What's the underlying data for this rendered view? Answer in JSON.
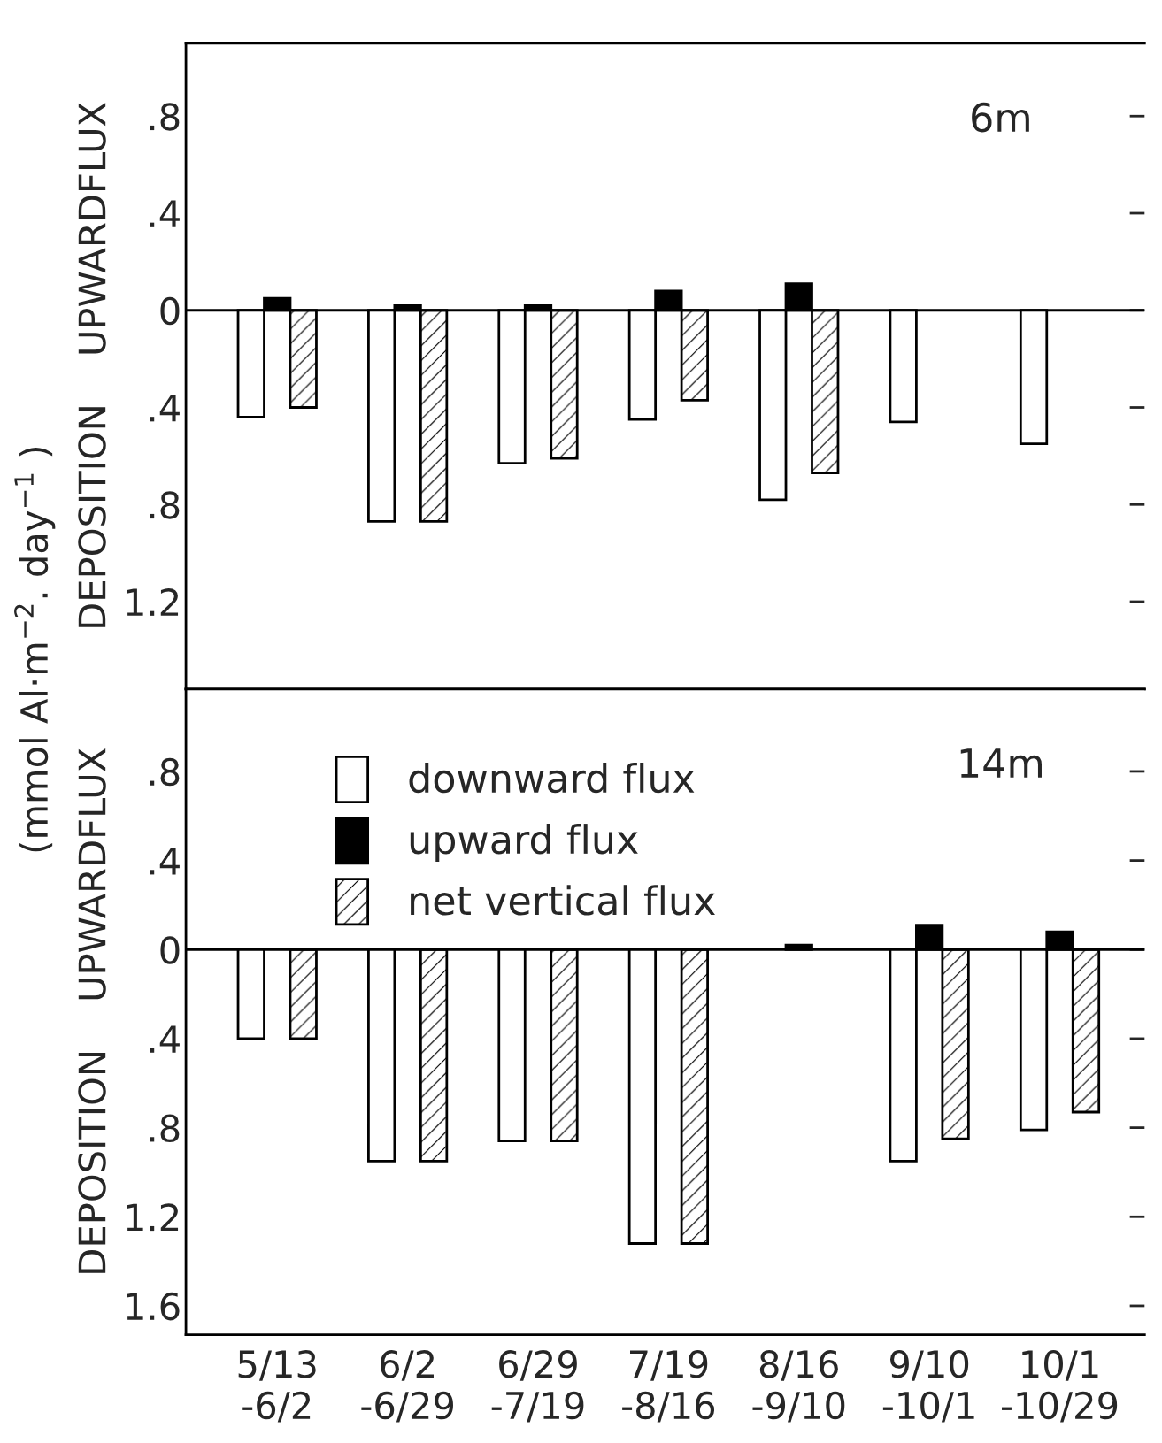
{
  "chart_data": [
    {
      "type": "bar",
      "title": "6m",
      "ylabel": "DEPOSITION    UPWARDFLUX",
      "annotations": [
        "(mmol Al·m$^{−2}$. day$^{−1}$ )"
      ],
      "tick_labels": "y",
      "grid": false,
      "categories": [
        null,
        null,
        null,
        null,
        null,
        null,
        null
      ],
      "series": [
        {
          "color": "#ffffff",
          "values": [
            -0.44,
            -0.87,
            -0.63,
            -0.45,
            -0.78,
            -0.46,
            -0.55
          ]
        },
        {
          "color": "#000000",
          "values": [
            0.05,
            0.02,
            0.02,
            0.08,
            0.11,
            null,
            null
          ]
        },
        {
          "color": "#000000",
          "values": [
            -0.4,
            -0.87,
            -0.61,
            -0.37,
            -0.67,
            null,
            null
          ]
        }
      ],
      "ylim": [
        -1.56,
        1.1
      ],
      "yticks": [
        {
          "value": -1.2,
          "label": "1.2"
        },
        {
          "value": -0.8,
          "label": ".8"
        },
        {
          "value": -0.4,
          "label": ".4"
        },
        0,
        {
          "value": 0.4,
          "label": ".4"
        },
        {
          "value": 0.8,
          "label": ".8"
        }
      ],
      "ref_lines": [
        {
          "axis": "y",
          "value": 0
        }
      ]
    },
    {
      "type": "bar",
      "title": "14m",
      "ylabel": "DEPOSITION    UPWARDFLUX",
      "legend": "top left",
      "grid": false,
      "categories": [
        "5/13\n-6/2",
        "6/2\n-6/29",
        "6/29\n-7/19",
        "7/19\n-8/16",
        "8/16\n-9/10",
        "9/10\n-10/1",
        "10/1\n-10/29"
      ],
      "series": [
        {
          "name": "downward flux",
          "color": "#ffffff",
          "values": [
            -0.4,
            -0.95,
            -0.86,
            -1.32,
            null,
            -0.95,
            -0.81
          ]
        },
        {
          "name": "upward flux",
          "color": "#000000",
          "values": [
            null,
            null,
            null,
            null,
            0.02,
            0.11,
            0.08
          ]
        },
        {
          "name": "net vertical flux",
          "color": "#000000",
          "values": [
            -0.4,
            -0.95,
            -0.86,
            -1.32,
            null,
            -0.85,
            -0.73
          ]
        }
      ],
      "ylim": [
        -1.73,
        1.17
      ],
      "yticks": [
        {
          "value": -1.6,
          "label": "1.6"
        },
        {
          "value": -1.2,
          "label": "1.2"
        },
        {
          "value": -0.8,
          "label": ".8"
        },
        {
          "value": -0.4,
          "label": ".4"
        },
        0,
        {
          "value": 0.4,
          "label": ".4"
        },
        {
          "value": 0.8,
          "label": ".8"
        }
      ],
      "ref_lines": [
        {
          "axis": "y",
          "value": 0
        }
      ]
    }
  ]
}
